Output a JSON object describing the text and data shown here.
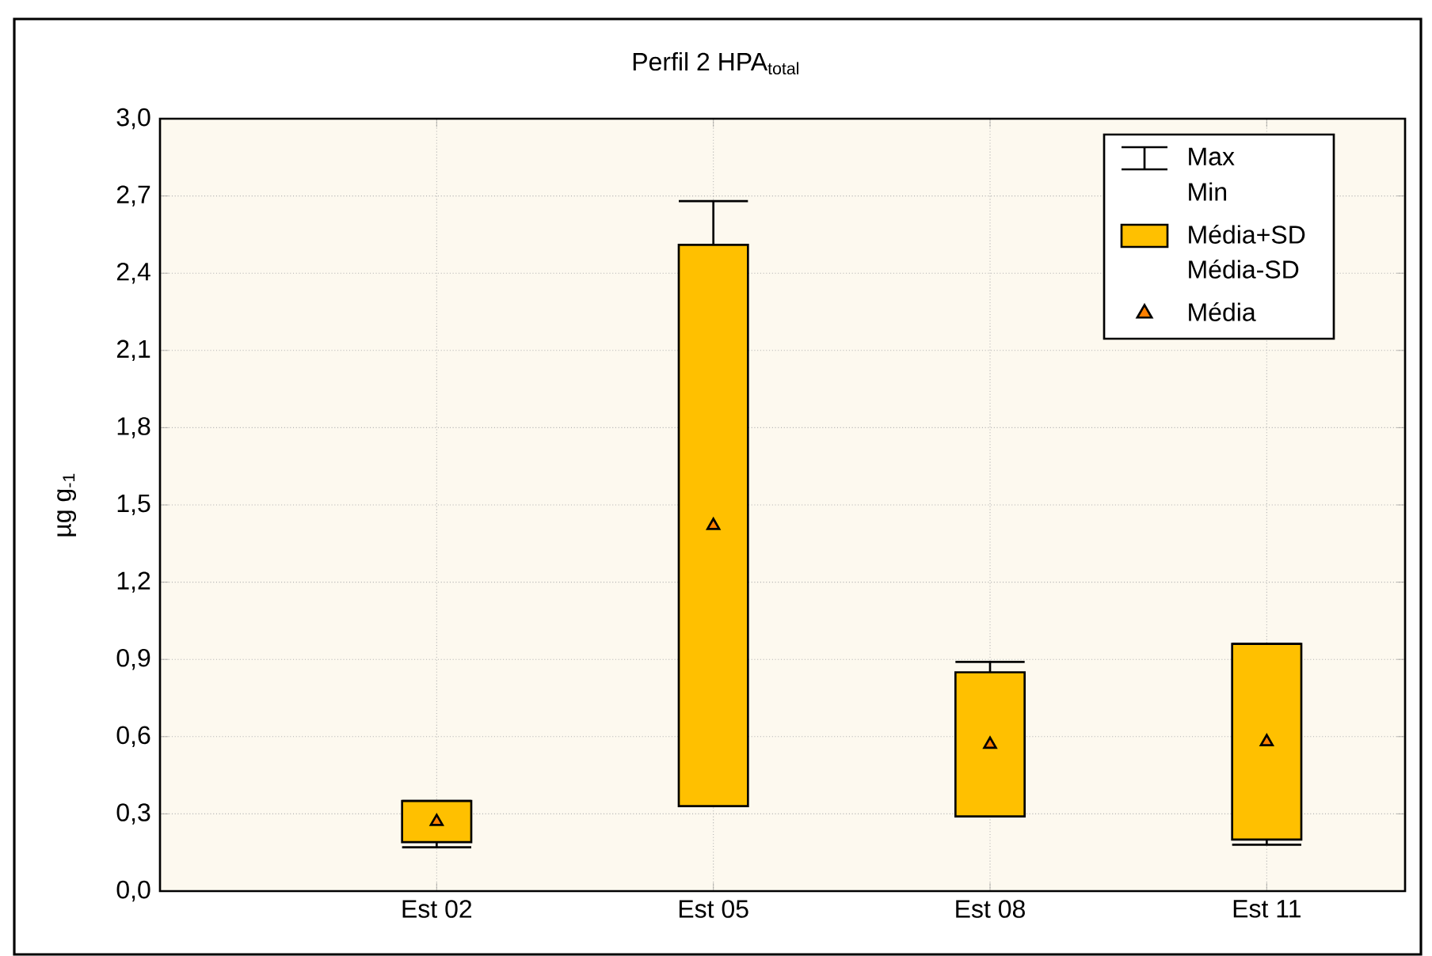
{
  "chart_data": {
    "type": "box",
    "title": "Perfil 2 HPA$_{total}$",
    "ylabel": "µg g$_{-1}$",
    "categories": [
      "Est 02",
      "Est 05",
      "Est 08",
      "Est 11"
    ],
    "series": [
      {
        "name": "Média+SD",
        "color": "#ffc000",
        "boxes": [
          {
            "low": 0.17,
            "q1": 0.19,
            "mean": 0.27,
            "q3": 0.35,
            "high": 0.35
          },
          {
            "low": 0.33,
            "q1": 0.33,
            "mean": 1.42,
            "q3": 2.51,
            "high": 2.68
          },
          {
            "low": 0.29,
            "q1": 0.29,
            "mean": 0.57,
            "q3": 0.85,
            "high": 0.89
          },
          {
            "low": 0.18,
            "q1": 0.2,
            "mean": 0.58,
            "q3": 0.96,
            "high": 0.96
          }
        ]
      }
    ],
    "ylim": [
      0,
      3
    ],
    "yticks": [
      {
        "value": 0,
        "label": "0,0"
      },
      {
        "value": 0.3,
        "label": "0,3"
      },
      {
        "value": 0.6,
        "label": "0,6"
      },
      {
        "value": 0.9,
        "label": "0,9"
      },
      {
        "value": 1.2,
        "label": "1,2"
      },
      {
        "value": 1.5,
        "label": "1,5"
      },
      {
        "value": 1.8,
        "label": "1,8"
      },
      {
        "value": 2.1,
        "label": "2,1"
      },
      {
        "value": 2.4,
        "label": "2,4"
      },
      {
        "value": 2.7,
        "label": "2,7"
      },
      {
        "value": 3.0,
        "label": "3,0"
      }
    ],
    "grid": true,
    "legend": "top right",
    "marker": "triangle",
    "annotations": [
      "Max",
      "Min",
      "Média-SD",
      "Média"
    ]
  }
}
